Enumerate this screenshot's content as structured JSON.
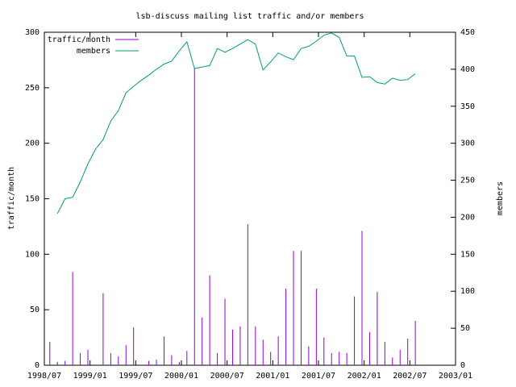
{
  "chart_data": {
    "type": "bar",
    "title": "lsb-discuss mailing list traffic and/or members",
    "ylabel": "traffic/month",
    "y2label": "members",
    "x": [
      "1998/07",
      "1998/08",
      "1998/09",
      "1998/10",
      "1998/11",
      "1998/12",
      "1999/01",
      "1999/02",
      "1999/03",
      "1999/04",
      "1999/05",
      "1999/06",
      "1999/07",
      "1999/08",
      "1999/09",
      "1999/10",
      "1999/11",
      "1999/12",
      "2000/01",
      "2000/02",
      "2000/03",
      "2000/04",
      "2000/05",
      "2000/06",
      "2000/07",
      "2000/08",
      "2000/09",
      "2000/10",
      "2000/11",
      "2000/12",
      "2001/01",
      "2001/02",
      "2001/03",
      "2001/04",
      "2001/05",
      "2001/06",
      "2001/07",
      "2001/08",
      "2001/09",
      "2001/10",
      "2001/11",
      "2001/12",
      "2002/01",
      "2002/02",
      "2002/03",
      "2002/04",
      "2002/05",
      "2002/06",
      "2002/07"
    ],
    "series": [
      {
        "name": "traffic/month",
        "type": "bar",
        "color": "#9400d3",
        "values": [
          21,
          3,
          4,
          84,
          11,
          14,
          0,
          65,
          11,
          8,
          18,
          34,
          0,
          4,
          5,
          26,
          9,
          3,
          13,
          267,
          43,
          81,
          11,
          60,
          32,
          35,
          127,
          35,
          23,
          12,
          26,
          69,
          103,
          103,
          17,
          69,
          25,
          11,
          12,
          11,
          62,
          121,
          30,
          66,
          21,
          7,
          14,
          24,
          40
        ]
      },
      {
        "name": "members",
        "type": "line",
        "axis": "y2",
        "color": "#009e73",
        "values": [
          null,
          205,
          225,
          227,
          248,
          272,
          292,
          305,
          330,
          344,
          368,
          377,
          385,
          392,
          400,
          407,
          411,
          425,
          437,
          401,
          403,
          405,
          428,
          423,
          428,
          434,
          440,
          434,
          399,
          410,
          422,
          417,
          413,
          428,
          431,
          438,
          446,
          449,
          443,
          418,
          418,
          389,
          390,
          382,
          380,
          388,
          385,
          386,
          394
        ]
      }
    ],
    "xlim": [
      "1998/07",
      "2003/01"
    ],
    "xticks": [
      "1998/07",
      "1999/01",
      "1999/07",
      "2000/01",
      "2000/07",
      "2001/01",
      "2001/07",
      "2002/01",
      "2002/07",
      "2003/01"
    ],
    "ylim": [
      0,
      300
    ],
    "yticks": [
      0,
      50,
      100,
      150,
      200,
      250,
      300
    ],
    "y2lim": [
      0,
      450
    ],
    "y2ticks": [
      0,
      50,
      100,
      150,
      200,
      250,
      300,
      350,
      400,
      450
    ],
    "legend": "top-left"
  }
}
